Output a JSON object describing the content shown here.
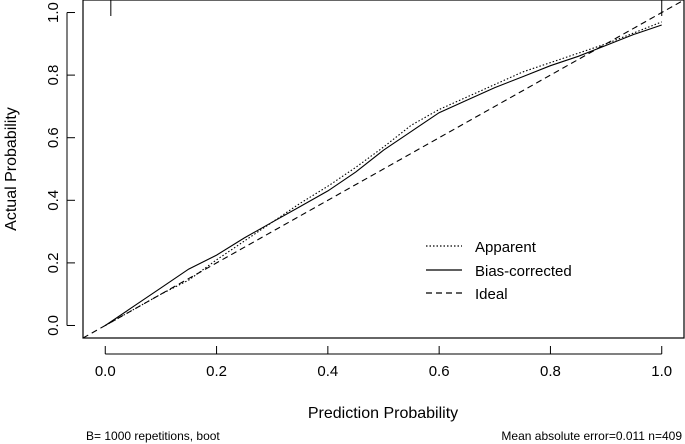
{
  "chart_data": {
    "type": "line",
    "xlabel": "Prediction Probability",
    "ylabel": "Actual Probability",
    "xlim": [
      -0.04,
      1.04
    ],
    "ylim": [
      -0.04,
      1.04
    ],
    "x_ticks": [
      "0.0",
      "0.2",
      "0.4",
      "0.6",
      "0.8",
      "1.0"
    ],
    "y_ticks": [
      "0.0",
      "0.2",
      "0.4",
      "0.6",
      "0.8",
      "1.0"
    ],
    "legend_position": "bottom-right",
    "grid": false,
    "series": [
      {
        "name": "Apparent",
        "style": "dotted",
        "x": [
          0.0,
          0.05,
          0.1,
          0.15,
          0.2,
          0.25,
          0.3,
          0.35,
          0.4,
          0.45,
          0.5,
          0.55,
          0.6,
          0.65,
          0.7,
          0.75,
          0.8,
          0.85,
          0.9,
          0.95,
          1.0
        ],
        "y": [
          0.0,
          0.05,
          0.1,
          0.145,
          0.21,
          0.27,
          0.33,
          0.39,
          0.445,
          0.505,
          0.57,
          0.64,
          0.69,
          0.73,
          0.77,
          0.81,
          0.84,
          0.87,
          0.9,
          0.935,
          0.97
        ]
      },
      {
        "name": "Bias-corrected",
        "style": "solid",
        "x": [
          0.0,
          0.05,
          0.1,
          0.15,
          0.2,
          0.25,
          0.3,
          0.35,
          0.4,
          0.45,
          0.5,
          0.55,
          0.6,
          0.65,
          0.7,
          0.75,
          0.8,
          0.85,
          0.9,
          0.95,
          1.0
        ],
        "y": [
          0.0,
          0.06,
          0.12,
          0.18,
          0.225,
          0.28,
          0.33,
          0.38,
          0.43,
          0.49,
          0.56,
          0.62,
          0.68,
          0.72,
          0.76,
          0.795,
          0.83,
          0.86,
          0.895,
          0.93,
          0.96
        ]
      },
      {
        "name": "Ideal",
        "style": "dashed",
        "x": [
          -0.04,
          1.04
        ],
        "y": [
          -0.04,
          1.04
        ]
      }
    ],
    "rug_top_x": [
      0.01,
      1.0
    ],
    "annotations": {
      "left": "B= 1000 repetitions, boot",
      "right": "Mean absolute error=0.011 n=409"
    }
  }
}
